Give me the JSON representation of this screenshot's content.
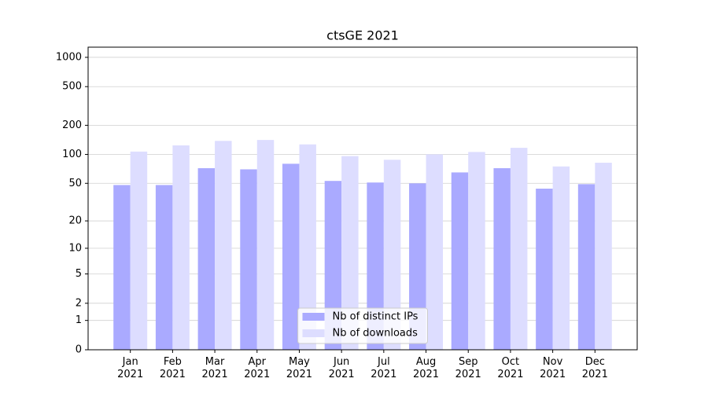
{
  "chart_data": {
    "type": "bar",
    "title": "ctsGE 2021",
    "categories": [
      "Jan\n2021",
      "Feb\n2021",
      "Mar\n2021",
      "Apr\n2021",
      "May\n2021",
      "Jun\n2021",
      "Jul\n2021",
      "Aug\n2021",
      "Sep\n2021",
      "Oct\n2021",
      "Nov\n2021",
      "Dec\n2021"
    ],
    "series": [
      {
        "name": "Nb of distinct IPs",
        "color": "#aaaaff",
        "values": [
          48,
          48,
          72,
          70,
          80,
          53,
          51,
          50,
          65,
          72,
          44,
          49
        ]
      },
      {
        "name": "Nb of downloads",
        "color": "#ddddff",
        "values": [
          107,
          124,
          138,
          141,
          127,
          96,
          88,
          100,
          106,
          117,
          75,
          82
        ]
      }
    ],
    "yscale": "log1p",
    "ylim": [
      0,
      1272
    ],
    "yticks": [
      0,
      1,
      2,
      5,
      10,
      20,
      50,
      100,
      200,
      500,
      1000
    ],
    "grid": true,
    "legend": "lower center"
  }
}
